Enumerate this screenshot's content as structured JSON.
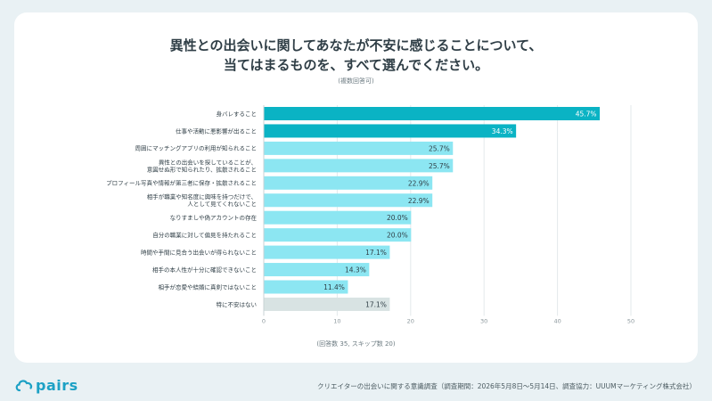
{
  "header": {
    "title_line1": "異性との出会いに関してあなたが不安に感じることについて、",
    "title_line2": "当てはまるものを、すべて選んでください。",
    "subtitle": "(複数回答可)"
  },
  "chart_data": {
    "type": "bar",
    "orientation": "horizontal",
    "categories": [
      "身バレすること",
      "仕事や活動に悪影響が出ること",
      "周囲にマッチングアプリの利用が知られること",
      "異性との出会いを探していることが、\n意図せぬ形で知られたり、拡散されること",
      "プロフィール写真や情報が第三者に保存・拡散されること",
      "相手が職業や知名度に興味を持つだけで、\n人として見てくれないこと",
      "なりすましや偽アカウントの存在",
      "自分の職業に対して偏見を持たれること",
      "時間や手間に見合う出会いが得られないこと",
      "相手の本人性が十分に確認できないこと",
      "相手が恋愛や結婚に真剣ではないこと",
      "特に不安はない"
    ],
    "values": [
      45.7,
      34.3,
      25.7,
      25.7,
      22.9,
      22.9,
      20.0,
      20.0,
      17.1,
      14.3,
      11.4,
      17.1
    ],
    "value_labels": [
      "45.7%",
      "34.3%",
      "25.7%",
      "25.7%",
      "22.9%",
      "22.9%",
      "20.0%",
      "20.0%",
      "17.1%",
      "14.3%",
      "11.4%",
      "17.1%"
    ],
    "xlim": [
      0,
      50
    ],
    "xticks": [
      "0",
      "10",
      "20",
      "30",
      "40",
      "50"
    ],
    "grid": true,
    "colors": {
      "top": "#0ab3c4",
      "other": "#8ce6f2",
      "none": "#d8e3e3"
    }
  },
  "note": "(回答数 35, スキップ数 20)",
  "brand": {
    "name": "pairs",
    "color": "#1da1c5"
  },
  "footer": "クリエイターの出会いに関する意識調査（調査期間：2026年5月8日〜5月14日、調査協力：UUUMマーケティング株式会社）"
}
